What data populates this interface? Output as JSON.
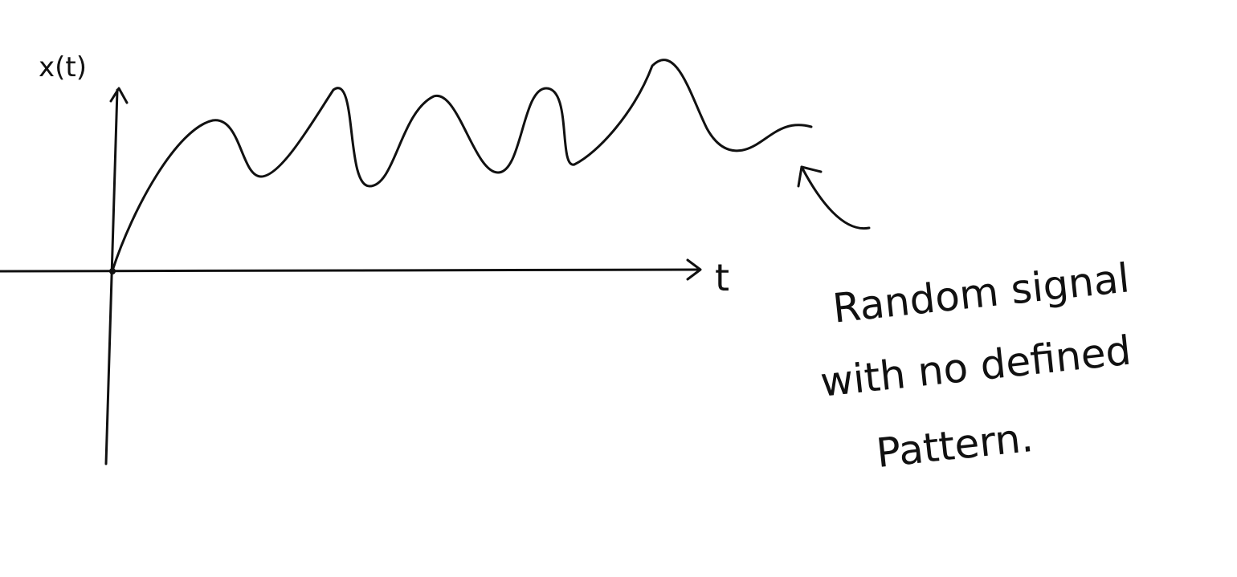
{
  "diagram": {
    "y_axis_label": "x(t)",
    "x_axis_label": "t",
    "annotation": [
      "Random signal",
      "with no defined",
      "Pattern."
    ]
  }
}
